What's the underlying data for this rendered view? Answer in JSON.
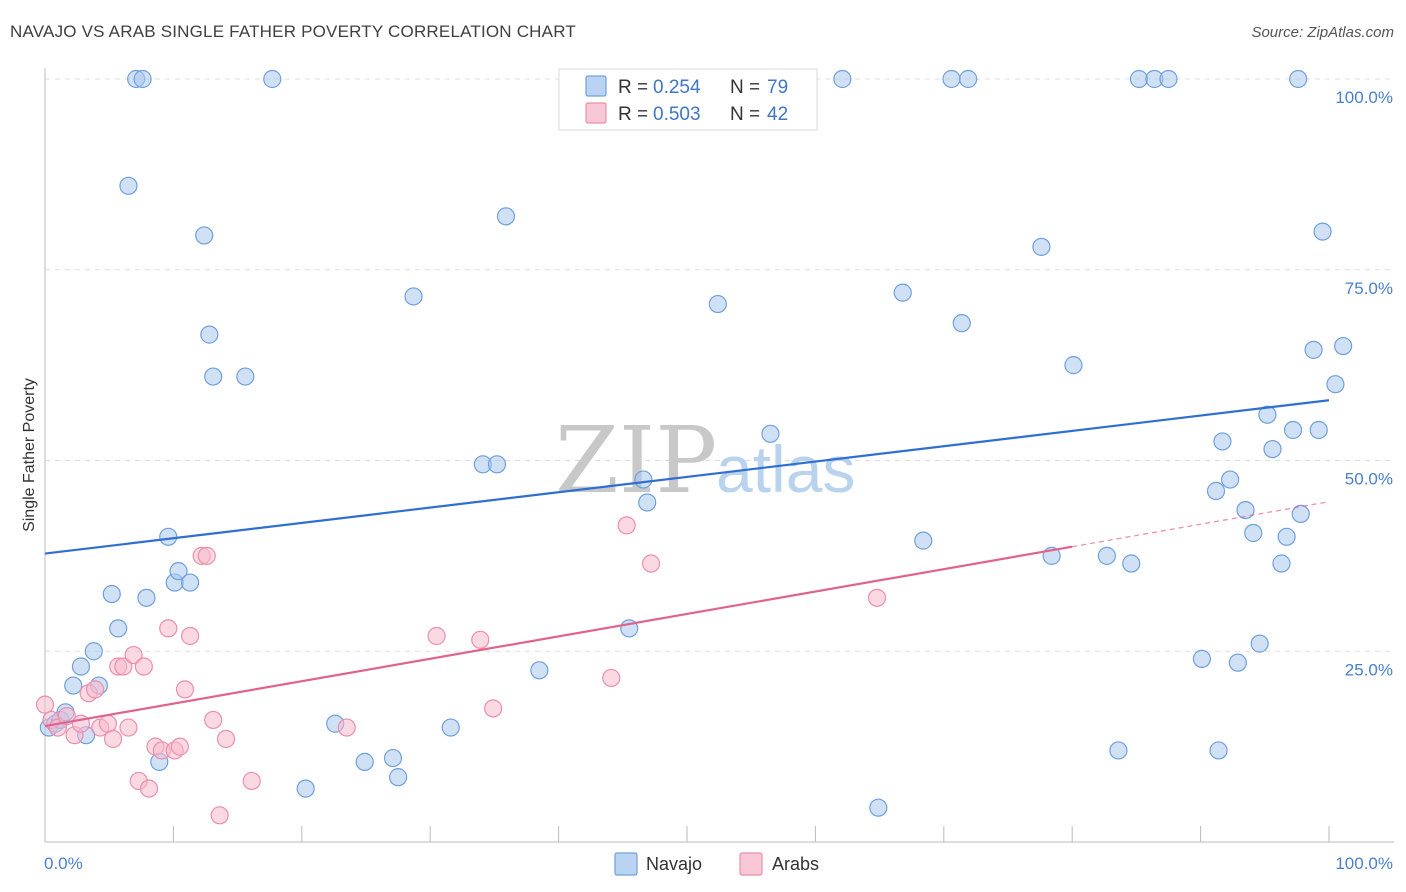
{
  "title": "NAVAJO VS ARAB SINGLE FATHER POVERTY CORRELATION CHART",
  "source": "Source: ZipAtlas.com",
  "watermark": {
    "zip": "ZIP",
    "atlas": "atlas"
  },
  "legend": {
    "rows": [
      {
        "r_label": "R = ",
        "r_value": "0.254",
        "n_label": "N = ",
        "n_value": "79"
      },
      {
        "r_label": "R = ",
        "r_value": "0.503",
        "n_label": "N = ",
        "n_value": "42"
      }
    ]
  },
  "bottom_legend": {
    "items": [
      "Navajo",
      "Arabs"
    ]
  },
  "colors": {
    "navajo_fill": "#a9c8ef",
    "navajo_stroke": "#6fa0dc",
    "navajo_line": "#2f6fd0",
    "arabs_fill": "#f6b9cc",
    "arabs_stroke": "#eb8fac",
    "arabs_line": "#e0638e",
    "tick_text": "#4a7fd0",
    "grid": "#dddddd"
  },
  "chart_data": {
    "type": "scatter",
    "title": "NAVAJO VS ARAB SINGLE FATHER POVERTY CORRELATION CHART",
    "ylabel": "Single Father Poverty",
    "xlabel": "",
    "xlim": [
      0,
      100
    ],
    "ylim": [
      0,
      100
    ],
    "x_tick_labels": [
      "0.0%",
      "100.0%"
    ],
    "y_tick_values": [
      25,
      50,
      75,
      100
    ],
    "y_tick_labels": [
      "25.0%",
      "50.0%",
      "75.0%",
      "100.0%"
    ],
    "series": [
      {
        "name": "Navajo",
        "r": 0.254,
        "n": 79,
        "trend": {
          "x0": 0,
          "y0": 37.8,
          "x1": 100,
          "y1": 57.9
        },
        "points": [
          [
            0.3,
            15
          ],
          [
            0.8,
            15.5
          ],
          [
            1.2,
            16
          ],
          [
            1.6,
            17
          ],
          [
            2.2,
            20.5
          ],
          [
            2.8,
            23
          ],
          [
            3.2,
            14
          ],
          [
            3.8,
            25
          ],
          [
            4.2,
            20.5
          ],
          [
            5.2,
            32.5
          ],
          [
            5.7,
            28
          ],
          [
            6.5,
            86
          ],
          [
            7.1,
            100
          ],
          [
            7.6,
            100
          ],
          [
            7.9,
            32
          ],
          [
            8.9,
            10.5
          ],
          [
            9.6,
            40
          ],
          [
            10.1,
            34
          ],
          [
            10.4,
            35.5
          ],
          [
            11.3,
            34
          ],
          [
            12.4,
            79.5
          ],
          [
            12.8,
            66.5
          ],
          [
            13.1,
            61
          ],
          [
            15.6,
            61
          ],
          [
            17.7,
            100
          ],
          [
            20.3,
            7
          ],
          [
            22.6,
            15.5
          ],
          [
            24.9,
            10.5
          ],
          [
            27.1,
            11
          ],
          [
            27.5,
            8.5
          ],
          [
            28.7,
            71.5
          ],
          [
            31.6,
            15
          ],
          [
            34.1,
            49.5
          ],
          [
            35.2,
            49.5
          ],
          [
            35.9,
            82
          ],
          [
            38.5,
            22.5
          ],
          [
            45.5,
            28
          ],
          [
            46.6,
            47.5
          ],
          [
            46.9,
            44.5
          ],
          [
            52.4,
            70.5
          ],
          [
            56.5,
            53.5
          ],
          [
            62.1,
            100
          ],
          [
            64.9,
            4.5
          ],
          [
            66.8,
            72
          ],
          [
            68.4,
            39.5
          ],
          [
            70.6,
            100
          ],
          [
            71.4,
            68
          ],
          [
            71.9,
            100
          ],
          [
            77.6,
            78
          ],
          [
            78.4,
            37.5
          ],
          [
            80.1,
            62.5
          ],
          [
            82.7,
            37.5
          ],
          [
            83.6,
            12
          ],
          [
            84.6,
            36.5
          ],
          [
            85.2,
            100
          ],
          [
            86.4,
            100
          ],
          [
            87.5,
            100
          ],
          [
            90.1,
            24
          ],
          [
            91.2,
            46
          ],
          [
            91.4,
            12
          ],
          [
            91.7,
            52.5
          ],
          [
            92.3,
            47.5
          ],
          [
            92.9,
            23.5
          ],
          [
            93.5,
            43.5
          ],
          [
            94.1,
            40.5
          ],
          [
            94.6,
            26
          ],
          [
            95.2,
            56
          ],
          [
            95.6,
            51.5
          ],
          [
            96.3,
            36.5
          ],
          [
            96.7,
            40
          ],
          [
            97.2,
            54
          ],
          [
            97.8,
            43
          ],
          [
            97.6,
            100
          ],
          [
            98.8,
            64.5
          ],
          [
            99.2,
            54
          ],
          [
            99.5,
            80
          ],
          [
            100.5,
            60
          ],
          [
            101.1,
            65
          ]
        ]
      },
      {
        "name": "Arabs",
        "r": 0.503,
        "n": 42,
        "trend": {
          "x0": 0,
          "y0": 15.2,
          "x1": 80,
          "y1": 38.7
        },
        "trend_dashed_end": {
          "x": 100,
          "y": 44.6
        },
        "points": [
          [
            0,
            18
          ],
          [
            0.5,
            16
          ],
          [
            1,
            15
          ],
          [
            1.7,
            16.5
          ],
          [
            2.3,
            14
          ],
          [
            2.8,
            15.5
          ],
          [
            3.4,
            19.5
          ],
          [
            3.9,
            20
          ],
          [
            4.3,
            15
          ],
          [
            4.9,
            15.5
          ],
          [
            5.3,
            13.5
          ],
          [
            5.7,
            23
          ],
          [
            6.1,
            23
          ],
          [
            6.5,
            15
          ],
          [
            6.9,
            24.5
          ],
          [
            7.3,
            8
          ],
          [
            7.7,
            23
          ],
          [
            8.1,
            7
          ],
          [
            8.6,
            12.5
          ],
          [
            9.1,
            12
          ],
          [
            9.6,
            28
          ],
          [
            10.1,
            12
          ],
          [
            10.5,
            12.5
          ],
          [
            10.9,
            20
          ],
          [
            11.3,
            27
          ],
          [
            12.2,
            37.5
          ],
          [
            12.6,
            37.5
          ],
          [
            13.1,
            16
          ],
          [
            13.6,
            3.5
          ],
          [
            14.1,
            13.5
          ],
          [
            16.1,
            8
          ],
          [
            23.5,
            15
          ],
          [
            30.5,
            27
          ],
          [
            33.9,
            26.5
          ],
          [
            34.9,
            17.5
          ],
          [
            44.1,
            21.5
          ],
          [
            45.3,
            41.5
          ],
          [
            47.2,
            36.5
          ],
          [
            64.8,
            32
          ]
        ]
      }
    ]
  }
}
